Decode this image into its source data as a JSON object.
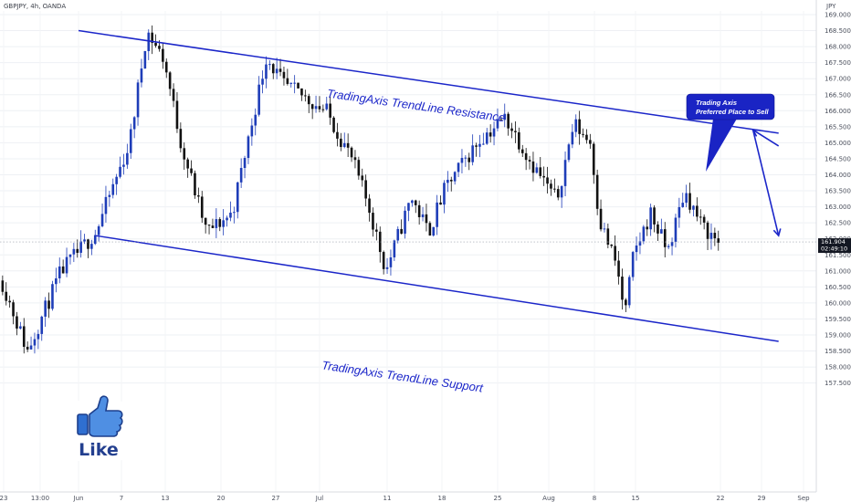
{
  "header": {
    "symbol_line": "GBPJPY, 4h, OANDA",
    "currency": "JPY"
  },
  "price_axis": {
    "ticks": [
      "169.000",
      "168.500",
      "168.000",
      "167.500",
      "167.000",
      "166.500",
      "166.000",
      "165.500",
      "165.000",
      "164.500",
      "164.000",
      "163.500",
      "163.000",
      "162.500",
      "162.000",
      "161.500",
      "161.000",
      "160.500",
      "160.000",
      "159.500",
      "159.000",
      "158.500",
      "158.000",
      "157.500"
    ],
    "current_price": "161.904",
    "countdown": "02:49:10",
    "current_color": "#131722"
  },
  "time_axis": {
    "labels": [
      "23",
      "13:00",
      "Jun",
      "7",
      "13",
      "20",
      "27",
      "Jul",
      "11",
      "18",
      "25",
      "Aug",
      "8",
      "15",
      "22",
      "29",
      "Sep"
    ]
  },
  "annotations": {
    "resistance_label": "TradingAxis TrendLine Resistance",
    "support_label": "TradingAxis TrendLine Support",
    "callout_line1": "Trading Axis",
    "callout_line2": "Preferred Place to Sell",
    "like_label": "Like"
  },
  "colors": {
    "annotation_blue": "#1b26c9",
    "callout_blue": "#1a24c4",
    "bull_candle": "#1e3db8",
    "bear_candle": "#111111",
    "like_blue": "#2f6fd1"
  },
  "chart_data": {
    "type": "candlestick",
    "symbol": "GBPJPY",
    "timeframe": "4h",
    "source": "OANDA",
    "ylim": [
      157.2,
      169.5
    ],
    "y_ticks": [
      169.0,
      168.5,
      168.0,
      167.5,
      167.0,
      166.5,
      166.0,
      165.5,
      165.0,
      164.5,
      164.0,
      163.5,
      163.0,
      162.5,
      162.0,
      161.5,
      161.0,
      160.5,
      160.0,
      159.5,
      159.0,
      158.5,
      158.0,
      157.5
    ],
    "last_price": 161.904,
    "x_range": [
      "May 23",
      "Sep 1"
    ],
    "x_tick_labels": [
      "23",
      "13:00",
      "Jun",
      "7",
      "13",
      "20",
      "27",
      "Jul",
      "11",
      "18",
      "25",
      "Aug",
      "8",
      "15",
      "22",
      "29",
      "Sep"
    ],
    "price_path": [
      [
        "May 23",
        160.7
      ],
      [
        "May 26",
        158.5
      ],
      [
        "May 30",
        161.0
      ],
      [
        "Jun 3",
        162.2
      ],
      [
        "Jun 7",
        165.0
      ],
      [
        "Jun 9",
        168.5
      ],
      [
        "Jun 11",
        167.6
      ],
      [
        "Jun 13",
        165.0
      ],
      [
        "Jun 16",
        162.2
      ],
      [
        "Jun 19",
        162.8
      ],
      [
        "Jun 23",
        167.7
      ],
      [
        "Jun 25",
        166.8
      ],
      [
        "Jun 27",
        166.5
      ],
      [
        "Jun 30",
        166.0
      ],
      [
        "Jul 3",
        164.5
      ],
      [
        "Jul 5",
        163.0
      ],
      [
        "Jul 7",
        161.0
      ],
      [
        "Jul 10",
        163.3
      ],
      [
        "Jul 12",
        162.2
      ],
      [
        "Jul 14",
        163.6
      ],
      [
        "Jul 18",
        165.1
      ],
      [
        "Jul 21",
        165.8
      ],
      [
        "Jul 24",
        164.4
      ],
      [
        "Jul 27",
        163.2
      ],
      [
        "Jul 29",
        165.6
      ],
      [
        "Jul 31",
        165.0
      ],
      [
        "Aug 1",
        162.6
      ],
      [
        "Aug 3",
        161.2
      ],
      [
        "Aug 4",
        159.6
      ],
      [
        "Aug 5",
        161.5
      ],
      [
        "Aug 7",
        162.8
      ],
      [
        "Aug 9",
        161.6
      ],
      [
        "Aug 11",
        163.5
      ],
      [
        "Aug 13",
        162.4
      ],
      [
        "Aug 15",
        161.9
      ]
    ],
    "trendlines": [
      {
        "name": "TradingAxis TrendLine Resistance",
        "from": [
          "Jun 1",
          168.5
        ],
        "to": [
          "Aug 22",
          165.3
        ]
      },
      {
        "name": "TradingAxis TrendLine Support",
        "from": [
          "Jun 3",
          162.1
        ],
        "to": [
          "Aug 22",
          158.8
        ]
      }
    ],
    "projection_arrows": [
      {
        "from": [
          "Aug 22",
          164.9
        ],
        "to": [
          "Aug 19",
          165.4
        ]
      },
      {
        "from": [
          "Aug 19",
          165.4
        ],
        "to": [
          "Aug 22",
          162.1
        ]
      }
    ],
    "grid": true,
    "legend": "none"
  }
}
